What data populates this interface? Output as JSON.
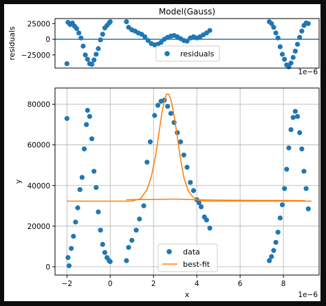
{
  "figure": {
    "background": "#ffffff",
    "frame": "#0d0d0d"
  },
  "chart_data": [
    {
      "type": "scatter",
      "title": "Model(Gauss)",
      "xlabel": "",
      "ylabel": "residuals",
      "offset_text": "1e−6",
      "xlim": [
        -2.55,
        9.65
      ],
      "ylim": [
        -46000,
        33000
      ],
      "yticks": [
        25000,
        0,
        -25000
      ],
      "ytick_labels": [
        "25000",
        "0",
        "−25000"
      ],
      "grid": false,
      "legend": {
        "placement": "lower-center",
        "entries": [
          "residuals"
        ]
      },
      "hline": {
        "y": 0,
        "color": "#1f77b4"
      },
      "series": [
        {
          "name": "residuals",
          "color": "#1f77b4",
          "x": [
            -2.0,
            -1.95,
            -1.85,
            -1.75,
            -1.65,
            -1.55,
            -1.45,
            -1.35,
            -1.25,
            -1.15,
            -1.05,
            -0.95,
            -0.85,
            -0.75,
            -0.65,
            -0.55,
            -0.45,
            -0.35,
            -0.25,
            -0.15,
            -0.05,
            0.0,
            0.75,
            0.85,
            1.0,
            1.15,
            1.3,
            1.45,
            1.6,
            1.75,
            1.9,
            2.05,
            2.2,
            2.35,
            2.5,
            2.65,
            2.8,
            2.95,
            3.1,
            3.25,
            3.4,
            3.55,
            3.7,
            3.85,
            4.0,
            4.15,
            4.3,
            4.45,
            4.6,
            7.35,
            7.45,
            7.55,
            7.65,
            7.75,
            7.85,
            7.95,
            8.05,
            8.15,
            8.25,
            8.35,
            8.45,
            8.55,
            8.65,
            8.75,
            8.85,
            8.95,
            9.05,
            9.15
          ],
          "y": [
            -39000,
            27000,
            23500,
            26000,
            21000,
            17000,
            10000,
            2000,
            -11000,
            -25000,
            -32000,
            -39000,
            -40000,
            -33000,
            -24000,
            -15000,
            -1000,
            8000,
            18000,
            22000,
            26000,
            28000,
            28000,
            19000,
            15000,
            13000,
            10000,
            8000,
            4000,
            -2000,
            -7000,
            -9000,
            -8000,
            -5000,
            0,
            3000,
            5000,
            6000,
            4000,
            1000,
            -2000,
            -3000,
            2000,
            4000,
            2000,
            4000,
            7000,
            10000,
            14000,
            28000,
            25000,
            19000,
            10000,
            2000,
            -12000,
            -24000,
            -32000,
            -41000,
            -44000,
            -38000,
            -29000,
            -19000,
            -8000,
            3000,
            13000,
            22000,
            26000,
            25000
          ]
        }
      ]
    },
    {
      "type": "scatter",
      "title": "",
      "xlabel": "x",
      "ylabel": "y",
      "offset_text": "1e−6",
      "xlim": [
        -2.55,
        9.65
      ],
      "ylim": [
        -4100,
        88000
      ],
      "xticks": [
        -2,
        0,
        2,
        4,
        6,
        8
      ],
      "xtick_labels": [
        "−2",
        "0",
        "2",
        "4",
        "6",
        "8"
      ],
      "yticks": [
        0,
        20000,
        40000,
        60000,
        80000
      ],
      "ytick_labels": [
        "0",
        "20000",
        "40000",
        "60000",
        "80000"
      ],
      "grid": true,
      "legend": {
        "placement": "lower-center",
        "entries": [
          "data",
          "best-fit"
        ]
      },
      "series": [
        {
          "name": "data",
          "kind": "points",
          "color": "#1f77b4",
          "x": [
            -2.0,
            -1.95,
            -1.9,
            -1.8,
            -1.7,
            -1.6,
            -1.5,
            -1.4,
            -1.3,
            -1.2,
            -1.1,
            -1.05,
            -0.95,
            -0.85,
            -0.75,
            -0.65,
            -0.55,
            -0.45,
            -0.35,
            -0.25,
            -0.15,
            -0.05,
            0.0,
            0.75,
            0.85,
            1.0,
            1.2,
            1.35,
            1.55,
            1.7,
            1.85,
            2.05,
            2.2,
            2.35,
            2.5,
            2.65,
            2.8,
            2.95,
            3.1,
            3.25,
            3.4,
            3.55,
            3.7,
            3.85,
            4.0,
            4.1,
            4.2,
            4.35,
            4.45,
            4.6,
            7.35,
            7.45,
            7.55,
            7.65,
            7.75,
            7.85,
            7.95,
            8.05,
            8.15,
            8.25,
            8.35,
            8.45,
            8.55,
            8.65,
            8.75,
            8.85,
            8.95,
            9.05,
            9.15
          ],
          "y": [
            73000,
            4500,
            500,
            9000,
            15000,
            22000,
            29000,
            38000,
            44000,
            58000,
            70000,
            77000,
            74000,
            63000,
            47000,
            39000,
            27000,
            18000,
            11000,
            7000,
            4500,
            3000,
            2500,
            3000,
            9500,
            13000,
            18000,
            23500,
            30000,
            51500,
            61500,
            74500,
            79500,
            81500,
            82000,
            79000,
            75500,
            71000,
            66000,
            61500,
            55000,
            49000,
            41500,
            37500,
            33000,
            31500,
            29500,
            24500,
            23000,
            19000,
            3000,
            5000,
            8000,
            12000,
            17000,
            24000,
            30500,
            38500,
            48000,
            58500,
            67500,
            73500,
            76500,
            74000,
            66000,
            58000,
            47000,
            38500,
            28500
          ]
        },
        {
          "name": "best-fit",
          "kind": "line",
          "color": "#ff7f0e",
          "x": [
            -2.0,
            0.6,
            1.0,
            1.4,
            1.7,
            1.9,
            2.1,
            2.2,
            2.3,
            2.4,
            2.5,
            2.6,
            2.7,
            2.8,
            2.9,
            3.0,
            3.1,
            3.2,
            3.3,
            3.4,
            3.6,
            3.8,
            4.0,
            4.2,
            4.4,
            4.7,
            5.0,
            6.0,
            7.0,
            8.0,
            9.3
          ],
          "y": [
            32300,
            32300,
            32300,
            33500,
            38000,
            44500,
            55000,
            62000,
            69500,
            76500,
            81500,
            85000,
            85000,
            82500,
            77500,
            71000,
            64000,
            56500,
            50000,
            44000,
            37500,
            34500,
            33000,
            32500,
            32300,
            32300,
            32300,
            32300,
            32300,
            32300,
            32300
          ]
        },
        {
          "name": "",
          "kind": "line",
          "color": "#ff7f0e",
          "x": [
            0.75,
            2.0,
            3.0,
            4.0,
            5.0,
            6.0,
            7.0,
            8.0,
            9.0
          ],
          "y": [
            33000,
            33100,
            33300,
            33000,
            32800,
            32700,
            32600,
            32600,
            32500
          ]
        }
      ]
    }
  ]
}
